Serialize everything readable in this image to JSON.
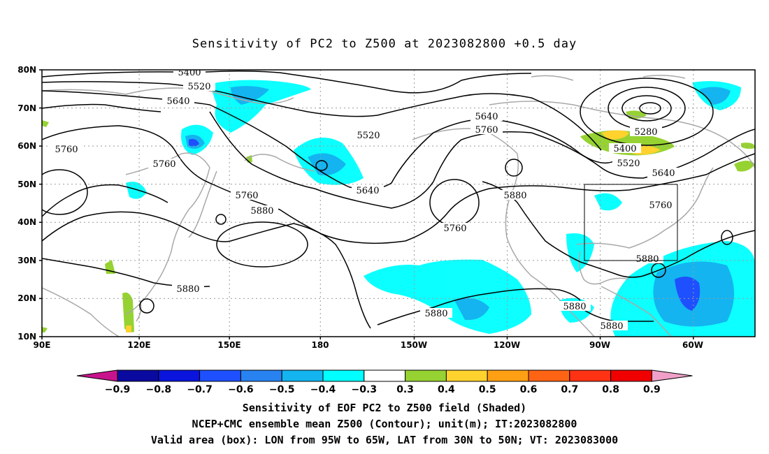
{
  "title": "Sensitivity of PC2 to Z500 at 2023082800 +0.5 day",
  "lat_labels": [
    "80N",
    "70N",
    "60N",
    "50N",
    "40N",
    "30N",
    "20N",
    "10N"
  ],
  "lon_labels": [
    "90E",
    "120E",
    "150E",
    "180",
    "150W",
    "120W",
    "90W",
    "60W"
  ],
  "contour_labels": [
    {
      "text": "5400"
    },
    {
      "text": "5520"
    },
    {
      "text": "5640"
    },
    {
      "text": "5760"
    },
    {
      "text": "5760"
    },
    {
      "text": "5520"
    },
    {
      "text": "5640"
    },
    {
      "text": "5760"
    },
    {
      "text": "5880"
    },
    {
      "text": "5640"
    },
    {
      "text": "5760"
    },
    {
      "text": "5760"
    },
    {
      "text": "5880"
    },
    {
      "text": "5880"
    },
    {
      "text": "5280"
    },
    {
      "text": "5400"
    },
    {
      "text": "5520"
    },
    {
      "text": "5640"
    },
    {
      "text": "5760"
    },
    {
      "text": "5880"
    },
    {
      "text": "5880"
    },
    {
      "text": "5880"
    },
    {
      "text": "5880"
    }
  ],
  "colorbar": {
    "labels": [
      "−0.9",
      "−0.8",
      "−0.7",
      "−0.6",
      "−0.5",
      "−0.4",
      "−0.3",
      "0.3",
      "0.4",
      "0.5",
      "0.6",
      "0.7",
      "0.8",
      "0.9"
    ],
    "colors": [
      "#c8148c",
      "#0a0aa0",
      "#0a14dc",
      "#1e50ff",
      "#2882f0",
      "#14b4f0",
      "#00ffff",
      "#ffffff",
      "#96d232",
      "#ffd22d",
      "#ffa014",
      "#ff6414",
      "#ff3214",
      "#f00000",
      "#f0a0c8"
    ]
  },
  "captions": [
    "Sensitivity of EOF PC2 to Z500 field (Shaded)",
    "NCEP+CMC ensemble mean Z500 (Contour); unit(m); IT:2023082800",
    "Valid area (box): LON from 95W to 65W, LAT from 30N to 50N; VT: 2023083000"
  ],
  "valid_box": {
    "lon_min": -95,
    "lon_max": -65,
    "lat_min": 30,
    "lat_max": 50
  },
  "map_extent": {
    "lon_min": 90,
    "lon_max": 310,
    "lat_min": 10,
    "lat_max": 80
  }
}
